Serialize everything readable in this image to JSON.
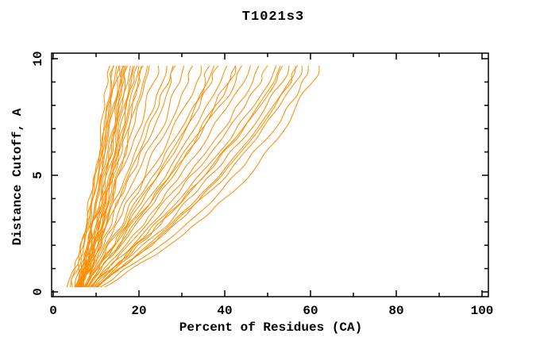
{
  "chart_data": {
    "type": "line",
    "title": "T1021s3",
    "xlabel": "Percent of Residues (CA)",
    "ylabel": "Distance Cutoff, A",
    "xlim": [
      0,
      100
    ],
    "ylim": [
      0,
      10
    ],
    "x_major_ticks": [
      0,
      20,
      40,
      60,
      80,
      100
    ],
    "x_minor_ticks": [
      10,
      30,
      50,
      70,
      90
    ],
    "y_major_ticks": [
      0,
      5,
      10
    ],
    "y_minor_ticks": [
      1,
      2,
      3,
      4,
      6,
      7,
      8,
      9
    ],
    "grid": "off",
    "legend": "none",
    "line_color": "#ff8c00",
    "frame_color": "#000000",
    "y_levels": [
      0.2,
      0.9,
      1.6,
      2.4,
      3.3,
      4.3,
      5.4,
      6.6,
      7.9,
      9.0,
      9.7
    ],
    "curves": [
      [
        4.5,
        5.5,
        6.5,
        7.2,
        8.0,
        9.0,
        10.0,
        11.0,
        12.0,
        12.8,
        13.2
      ],
      [
        5.0,
        6.0,
        6.8,
        7.6,
        8.6,
        9.6,
        10.4,
        11.4,
        12.4,
        13.4,
        14.0
      ],
      [
        5.2,
        6.2,
        7.2,
        8.2,
        9.0,
        9.8,
        10.8,
        12.0,
        13.0,
        14.2,
        14.8
      ],
      [
        5.5,
        6.5,
        7.5,
        8.5,
        9.5,
        10.5,
        11.5,
        12.5,
        13.8,
        15.0,
        15.6
      ],
      [
        5.8,
        6.8,
        7.8,
        8.8,
        9.8,
        10.8,
        12.0,
        13.2,
        14.4,
        15.6,
        16.2
      ],
      [
        6.0,
        7.0,
        8.0,
        9.0,
        10.0,
        11.2,
        12.4,
        13.6,
        14.8,
        16.0,
        16.6
      ],
      [
        6.2,
        7.2,
        8.2,
        9.2,
        10.4,
        11.6,
        12.8,
        14.0,
        15.4,
        16.8,
        17.4
      ],
      [
        6.5,
        7.5,
        8.5,
        9.6,
        10.8,
        12.0,
        13.2,
        14.6,
        16.0,
        17.4,
        18.0
      ],
      [
        6.8,
        7.8,
        9.0,
        10.2,
        11.4,
        12.6,
        14.0,
        15.4,
        16.8,
        18.2,
        19.0
      ],
      [
        7.0,
        8.2,
        9.4,
        10.6,
        11.8,
        13.0,
        14.4,
        16.0,
        17.6,
        19.2,
        20.0
      ],
      [
        7.2,
        8.4,
        9.6,
        10.8,
        12.2,
        13.6,
        15.0,
        16.6,
        18.4,
        20.2,
        21.0
      ],
      [
        7.5,
        8.8,
        10.0,
        11.2,
        12.6,
        14.0,
        15.6,
        17.4,
        19.2,
        21.0,
        22.0
      ],
      [
        4.0,
        5.0,
        6.0,
        7.0,
        8.0,
        9.2,
        10.4,
        11.6,
        12.6,
        13.6,
        14.2
      ],
      [
        3.2,
        4.6,
        6.0,
        7.4,
        8.6,
        9.8,
        11.0,
        12.2,
        13.4,
        14.6,
        15.2
      ],
      [
        5.4,
        6.6,
        7.8,
        9.0,
        10.2,
        11.4,
        12.6,
        14.0,
        15.2,
        16.4,
        17.0
      ],
      [
        5.6,
        7.0,
        8.4,
        9.6,
        10.8,
        12.2,
        13.6,
        15.0,
        16.4,
        17.8,
        18.6
      ],
      [
        6.4,
        7.6,
        8.8,
        10.0,
        11.2,
        12.4,
        13.8,
        15.2,
        17.0,
        18.8,
        19.6
      ],
      [
        6.6,
        8.0,
        9.2,
        10.4,
        11.6,
        13.0,
        14.6,
        16.2,
        18.0,
        19.8,
        20.6
      ],
      [
        5.0,
        6.2,
        7.4,
        8.4,
        9.4,
        10.4,
        11.6,
        12.8,
        14.2,
        15.8,
        16.4
      ],
      [
        7.4,
        8.6,
        10.0,
        11.4,
        12.8,
        14.4,
        16.0,
        17.8,
        19.6,
        21.4,
        22.4
      ],
      [
        5.5,
        7.0,
        8.5,
        10.0,
        12.0,
        14.0,
        16.5,
        19.0,
        21.5,
        23.5,
        24.5
      ],
      [
        6.0,
        7.5,
        9.0,
        11.0,
        13.0,
        15.5,
        18.0,
        20.5,
        23.5,
        25.5,
        26.5
      ],
      [
        6.5,
        8.0,
        10.0,
        12.0,
        14.0,
        16.5,
        19.5,
        22.5,
        25.5,
        27.5,
        28.5
      ],
      [
        6.8,
        8.5,
        10.5,
        12.5,
        15.0,
        17.5,
        20.5,
        24.0,
        27.0,
        29.5,
        30.5
      ],
      [
        7.0,
        9.0,
        11.0,
        13.5,
        16.0,
        19.0,
        22.0,
        25.5,
        29.0,
        31.5,
        32.5
      ],
      [
        7.2,
        9.2,
        11.5,
        14.0,
        17.0,
        20.0,
        23.5,
        27.0,
        30.5,
        33.5,
        34.5
      ],
      [
        7.5,
        9.5,
        12.0,
        14.5,
        17.5,
        21.0,
        25.0,
        28.5,
        32.5,
        35.5,
        36.5
      ],
      [
        7.8,
        10.0,
        12.5,
        15.5,
        18.5,
        22.0,
        26.0,
        30.0,
        34.0,
        37.0,
        38.5
      ],
      [
        8.0,
        10.5,
        13.0,
        16.0,
        19.5,
        23.5,
        27.5,
        31.5,
        35.5,
        39.0,
        40.5
      ],
      [
        8.2,
        11.0,
        14.0,
        17.0,
        20.5,
        24.5,
        29.0,
        33.5,
        37.5,
        41.0,
        42.5
      ],
      [
        6.2,
        7.8,
        9.5,
        11.5,
        13.5,
        16.0,
        18.5,
        21.5,
        24.5,
        27.0,
        28.0
      ],
      [
        7.6,
        9.8,
        12.2,
        15.0,
        18.0,
        21.5,
        25.5,
        29.5,
        33.0,
        36.0,
        37.5
      ],
      [
        8.0,
        11.0,
        14.0,
        17.5,
        21.0,
        25.0,
        29.5,
        34.0,
        38.5,
        42.5,
        44.0
      ],
      [
        8.5,
        11.5,
        15.0,
        18.5,
        22.5,
        26.5,
        31.0,
        36.0,
        40.5,
        44.5,
        46.0
      ],
      [
        8.8,
        12.0,
        15.5,
        19.5,
        23.5,
        28.0,
        33.0,
        38.0,
        42.5,
        46.5,
        48.0
      ],
      [
        9.0,
        12.5,
        16.5,
        20.5,
        25.0,
        29.5,
        34.5,
        39.5,
        44.5,
        48.5,
        50.0
      ],
      [
        9.2,
        13.0,
        17.0,
        21.5,
        26.0,
        31.0,
        36.0,
        41.5,
        46.5,
        50.5,
        52.0
      ],
      [
        9.5,
        13.5,
        18.0,
        22.5,
        27.0,
        32.0,
        37.5,
        43.0,
        48.0,
        52.0,
        53.5
      ],
      [
        9.8,
        14.0,
        18.5,
        23.5,
        28.5,
        33.5,
        39.0,
        44.5,
        49.5,
        53.5,
        55.0
      ],
      [
        10.0,
        14.5,
        19.5,
        24.5,
        29.5,
        35.0,
        40.5,
        46.0,
        51.0,
        55.0,
        56.5
      ],
      [
        10.5,
        15.0,
        20.0,
        25.5,
        31.0,
        36.5,
        42.0,
        47.5,
        52.5,
        56.5,
        58.0
      ],
      [
        11.0,
        16.0,
        22.0,
        28.0,
        33.5,
        39.0,
        44.5,
        50.0,
        54.5,
        58.0,
        59.5
      ],
      [
        12.0,
        17.5,
        24.0,
        30.0,
        36.0,
        42.0,
        47.5,
        52.5,
        56.5,
        60.5,
        62.0
      ],
      [
        8.2,
        10.5,
        13.5,
        16.5,
        20.0,
        24.0,
        28.5,
        33.0,
        37.5,
        41.0,
        42.5
      ],
      [
        9.4,
        13.2,
        17.5,
        22.0,
        26.5,
        31.5,
        37.0,
        42.5,
        47.5,
        51.5,
        53.0
      ],
      [
        10.2,
        14.8,
        19.8,
        25.0,
        30.0,
        35.5,
        41.0,
        46.5,
        51.5,
        55.5,
        57.0
      ]
    ]
  }
}
